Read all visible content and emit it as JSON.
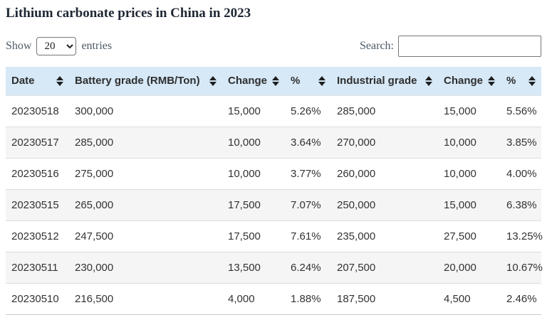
{
  "title": "Lithium carbonate prices in China in 2023",
  "controls": {
    "show_label": "Show",
    "page_length": "20",
    "entries_label": "entries",
    "search_label": "Search:",
    "search_value": ""
  },
  "table": {
    "columns": [
      {
        "key": "date",
        "label": "Date"
      },
      {
        "key": "battery-grade",
        "label": "Battery grade (RMB/Ton)"
      },
      {
        "key": "battery-change",
        "label": "Change"
      },
      {
        "key": "battery-pct",
        "label": "%"
      },
      {
        "key": "industrial-grade",
        "label": "Industrial grade"
      },
      {
        "key": "industrial-change",
        "label": "Change"
      },
      {
        "key": "industrial-pct",
        "label": "%"
      }
    ],
    "rows": [
      [
        "20230518",
        "300,000",
        "15,000",
        "5.26%",
        "285,000",
        "15,000",
        "5.56%"
      ],
      [
        "20230517",
        "285,000",
        "10,000",
        "3.64%",
        "270,000",
        "10,000",
        "3.85%"
      ],
      [
        "20230516",
        "275,000",
        "10,000",
        "3.77%",
        "260,000",
        "10,000",
        "4.00%"
      ],
      [
        "20230515",
        "265,000",
        "17,500",
        "7.07%",
        "250,000",
        "15,000",
        "6.38%"
      ],
      [
        "20230512",
        "247,500",
        "17,500",
        "7.61%",
        "235,000",
        "27,500",
        "13.25%"
      ],
      [
        "20230511",
        "230,000",
        "13,500",
        "6.24%",
        "207,500",
        "20,000",
        "10.67%"
      ],
      [
        "20230510",
        "216,500",
        "4,000",
        "1.88%",
        "187,500",
        "4,500",
        "2.46%"
      ]
    ]
  },
  "colors": {
    "header_bg": "#d7e9f7",
    "stripe_bg": "#f5f5f5",
    "table_text": "#333333",
    "title_text": "#1f2733",
    "label_text": "#4c5a66",
    "row_border": "#dddddd",
    "sort_icon": "#1e1e1e"
  }
}
